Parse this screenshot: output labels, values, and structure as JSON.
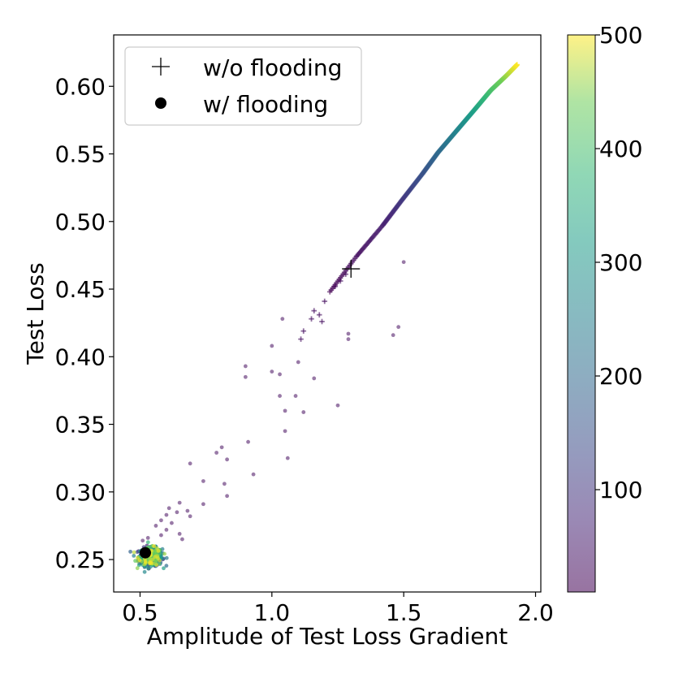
{
  "chart_data": {
    "type": "scatter",
    "xlabel": "Amplitude of Test Loss Gradient",
    "ylabel": "Test Loss",
    "xlim": [
      0.4,
      2.02
    ],
    "ylim": [
      0.226,
      0.638
    ],
    "xticks": [
      0.5,
      1.0,
      1.5,
      2.0
    ],
    "xtick_labels": [
      "0.5",
      "1.0",
      "1.5",
      "2.0"
    ],
    "yticks": [
      0.25,
      0.3,
      0.35,
      0.4,
      0.45,
      0.5,
      0.55,
      0.6
    ],
    "ytick_labels": [
      "0.25",
      "0.30",
      "0.35",
      "0.40",
      "0.45",
      "0.50",
      "0.55",
      "0.60"
    ],
    "grid": false,
    "legend_position": "top-left",
    "colormap": "viridis",
    "colorbar": {
      "range": [
        10,
        500
      ],
      "ticks": [
        100,
        200,
        300,
        400,
        500
      ],
      "tick_labels": [
        "100",
        "200",
        "300",
        "400",
        "500"
      ]
    },
    "series": [
      {
        "name": "w/o flooding",
        "marker": "plus",
        "note_color": "epoch",
        "trajectory": [
          {
            "epoch": 10,
            "x": 1.22,
            "y": 0.448
          },
          {
            "epoch": 30,
            "x": 1.32,
            "y": 0.474
          },
          {
            "epoch": 60,
            "x": 1.42,
            "y": 0.497
          },
          {
            "epoch": 100,
            "x": 1.49,
            "y": 0.515
          },
          {
            "epoch": 150,
            "x": 1.57,
            "y": 0.535
          },
          {
            "epoch": 200,
            "x": 1.63,
            "y": 0.551
          },
          {
            "epoch": 260,
            "x": 1.7,
            "y": 0.567
          },
          {
            "epoch": 330,
            "x": 1.77,
            "y": 0.583
          },
          {
            "epoch": 400,
            "x": 1.83,
            "y": 0.597
          },
          {
            "epoch": 460,
            "x": 1.89,
            "y": 0.608
          },
          {
            "epoch": 500,
            "x": 1.93,
            "y": 0.616
          }
        ],
        "early_points": [
          {
            "x": 1.2,
            "y": 0.441
          },
          {
            "x": 1.16,
            "y": 0.434
          },
          {
            "x": 1.18,
            "y": 0.431
          },
          {
            "x": 1.15,
            "y": 0.428
          },
          {
            "x": 1.19,
            "y": 0.426
          },
          {
            "x": 1.11,
            "y": 0.413
          },
          {
            "x": 1.12,
            "y": 0.419
          },
          {
            "x": 1.26,
            "y": 0.456
          },
          {
            "x": 1.24,
            "y": 0.452
          },
          {
            "x": 1.28,
            "y": 0.461
          }
        ],
        "mean_marker": {
          "x": 1.3,
          "y": 0.465
        }
      },
      {
        "name": "w/ flooding",
        "marker": "dot",
        "scattered_points": [
          {
            "x": 1.5,
            "y": 0.47
          },
          {
            "x": 1.04,
            "y": 0.428
          },
          {
            "x": 1.29,
            "y": 0.417
          },
          {
            "x": 1.29,
            "y": 0.413
          },
          {
            "x": 1.48,
            "y": 0.422
          },
          {
            "x": 1.46,
            "y": 0.416
          },
          {
            "x": 1.0,
            "y": 0.408
          },
          {
            "x": 1.1,
            "y": 0.396
          },
          {
            "x": 0.9,
            "y": 0.393
          },
          {
            "x": 0.9,
            "y": 0.385
          },
          {
            "x": 1.0,
            "y": 0.389
          },
          {
            "x": 1.03,
            "y": 0.387
          },
          {
            "x": 1.16,
            "y": 0.384
          },
          {
            "x": 1.03,
            "y": 0.371
          },
          {
            "x": 1.09,
            "y": 0.371
          },
          {
            "x": 1.05,
            "y": 0.36
          },
          {
            "x": 1.12,
            "y": 0.359
          },
          {
            "x": 1.25,
            "y": 0.364
          },
          {
            "x": 1.05,
            "y": 0.345
          },
          {
            "x": 0.91,
            "y": 0.337
          },
          {
            "x": 1.06,
            "y": 0.325
          },
          {
            "x": 0.81,
            "y": 0.333
          },
          {
            "x": 0.79,
            "y": 0.329
          },
          {
            "x": 0.69,
            "y": 0.321
          },
          {
            "x": 0.83,
            "y": 0.324
          },
          {
            "x": 0.93,
            "y": 0.313
          },
          {
            "x": 0.74,
            "y": 0.308
          },
          {
            "x": 0.82,
            "y": 0.306
          },
          {
            "x": 0.83,
            "y": 0.297
          },
          {
            "x": 0.65,
            "y": 0.292
          },
          {
            "x": 0.74,
            "y": 0.291
          },
          {
            "x": 0.61,
            "y": 0.288
          },
          {
            "x": 0.68,
            "y": 0.286
          },
          {
            "x": 0.69,
            "y": 0.282
          },
          {
            "x": 0.64,
            "y": 0.285
          },
          {
            "x": 0.6,
            "y": 0.283
          },
          {
            "x": 0.58,
            "y": 0.279
          },
          {
            "x": 0.62,
            "y": 0.277
          },
          {
            "x": 0.56,
            "y": 0.275
          },
          {
            "x": 0.6,
            "y": 0.272
          },
          {
            "x": 0.65,
            "y": 0.269
          },
          {
            "x": 0.66,
            "y": 0.265
          },
          {
            "x": 0.58,
            "y": 0.268
          },
          {
            "x": 0.53,
            "y": 0.266
          },
          {
            "x": 0.51,
            "y": 0.264
          }
        ],
        "cluster": {
          "center_x": 0.54,
          "center_y": 0.252,
          "spread_x": 0.04,
          "spread_y": 0.006
        },
        "mean_marker": {
          "x": 0.52,
          "y": 0.255
        }
      }
    ]
  }
}
